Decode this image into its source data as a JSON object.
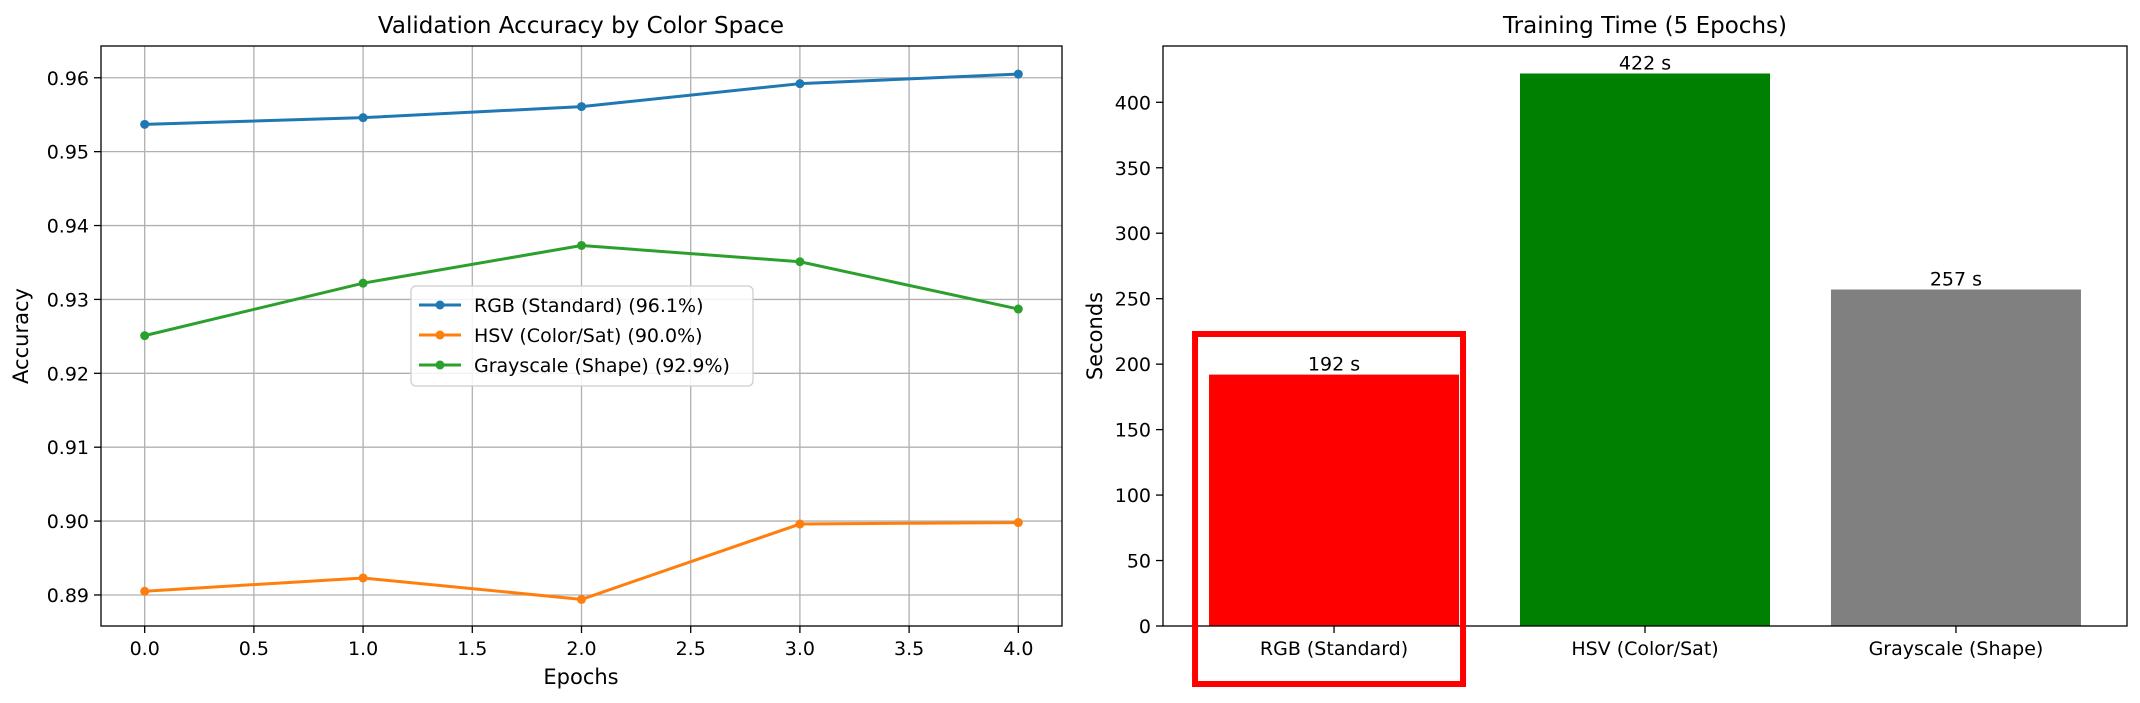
{
  "chart_data": [
    {
      "type": "line",
      "title": "Validation Accuracy by Color Space",
      "xlabel": "Epochs",
      "ylabel": "Accuracy",
      "xlim": [
        -0.2,
        4.2
      ],
      "ylim": [
        0.8858,
        0.9643
      ],
      "xticks": [
        "0.0",
        "0.5",
        "1.0",
        "1.5",
        "2.0",
        "2.5",
        "3.0",
        "3.5",
        "4.0"
      ],
      "yticks": [
        "0.89",
        "0.90",
        "0.91",
        "0.92",
        "0.93",
        "0.94",
        "0.95",
        "0.96"
      ],
      "grid": true,
      "legend_position": "center",
      "x": [
        0,
        1,
        2,
        3,
        4
      ],
      "series": [
        {
          "name": "RGB (Standard) (96.1%)",
          "color": "#1f77b4",
          "values": [
            0.9537,
            0.9546,
            0.9561,
            0.9592,
            0.9605
          ]
        },
        {
          "name": "HSV (Color/Sat) (90.0%)",
          "color": "#ff7f0e",
          "values": [
            0.8905,
            0.8923,
            0.8894,
            0.8996,
            0.8998
          ]
        },
        {
          "name": "Grayscale (Shape) (92.9%)",
          "color": "#2ca02c",
          "values": [
            0.9251,
            0.9322,
            0.9373,
            0.9351,
            0.9287
          ]
        }
      ]
    },
    {
      "type": "bar",
      "title": "Training Time (5 Epochs)",
      "xlabel": "",
      "ylabel": "Seconds",
      "ylim": [
        0,
        443
      ],
      "yticks": [
        "0",
        "50",
        "100",
        "150",
        "200",
        "250",
        "300",
        "350",
        "400"
      ],
      "grid": false,
      "categories": [
        "RGB (Standard)",
        "HSV (Color/Sat)",
        "Grayscale (Shape)"
      ],
      "values": [
        192,
        422,
        257
      ],
      "data_labels": [
        "192 s",
        "422 s",
        "257 s"
      ],
      "colors": [
        "#ff0000",
        "#008000",
        "#808080"
      ],
      "highlight": {
        "category": "RGB (Standard)",
        "color": "#ff0000"
      }
    }
  ]
}
